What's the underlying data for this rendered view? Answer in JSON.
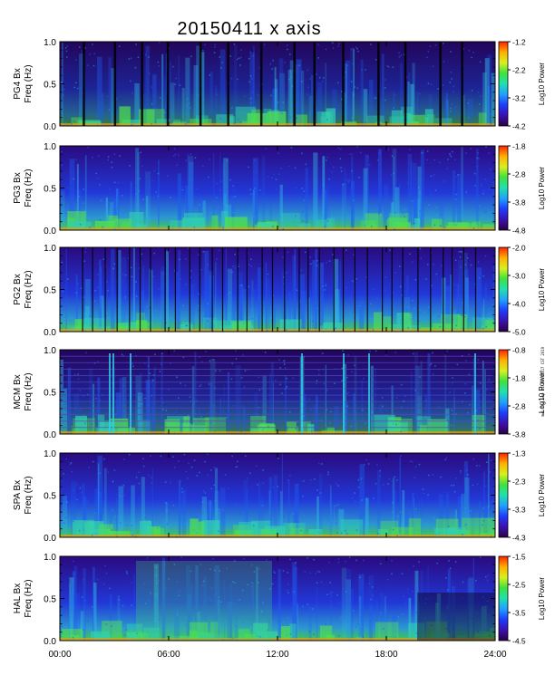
{
  "chart_data": {
    "type": "heatmap",
    "title": "20150411 x axis",
    "x_axis": {
      "range": [
        "00:00",
        "24:00"
      ],
      "ticks": [
        "00:00",
        "06:00",
        "12:00",
        "18:00",
        "24:00"
      ]
    },
    "y_axis": {
      "range": [
        0.0,
        1.0
      ],
      "ticks": [
        "0.0",
        "0.5",
        "1.0"
      ]
    },
    "colorbar_label": "Log10 Power",
    "colorscale": [
      "#2a0045",
      "#3d10b0",
      "#1e3cff",
      "#1fa0ff",
      "#20e0b0",
      "#40e040",
      "#d8f020",
      "#ffb000",
      "#ff2000"
    ],
    "panels": [
      {
        "ylabel": "PG4 Bx",
        "ylabel2": "Freq (Hz)",
        "cbar_ticks": [
          "-1.2",
          "-2.2",
          "-3.2",
          "-4.2"
        ],
        "cbar_range": [
          -4.2,
          -1.2
        ]
      },
      {
        "ylabel": "PG3 Bx",
        "ylabel2": "Freq (Hz)",
        "cbar_ticks": [
          "-1.8",
          "-2.8",
          "-3.8",
          "-4.8"
        ],
        "cbar_range": [
          -4.8,
          -1.8
        ]
      },
      {
        "ylabel": "PG2 Bx",
        "ylabel2": "Freq (Hz)",
        "cbar_ticks": [
          "-2.0",
          "-3.0",
          "-4.0",
          "-5.0"
        ],
        "cbar_range": [
          -5.0,
          -2.0
        ]
      },
      {
        "ylabel": "MCM Bx",
        "ylabel2": "Freq (Hz)",
        "cbar_ticks": [
          "-0.8",
          "-1.8",
          "-2.8",
          "-3.8"
        ],
        "cbar_range": [
          -3.8,
          -0.8
        ]
      },
      {
        "ylabel": "SPA Bx",
        "ylabel2": "Freq (Hz)",
        "cbar_ticks": [
          "-1.3",
          "-2.3",
          "-3.3",
          "-4.3"
        ],
        "cbar_range": [
          -4.3,
          -1.3
        ]
      },
      {
        "ylabel": "HAL Bx",
        "ylabel2": "Freq (Hz)",
        "cbar_ticks": [
          "-1.5",
          "-2.5",
          "-3.5",
          "-4.5"
        ],
        "cbar_range": [
          -4.5,
          -1.5
        ]
      }
    ]
  },
  "side_note": "mwl Tue Sep 24 09:49:17 CST 2019"
}
